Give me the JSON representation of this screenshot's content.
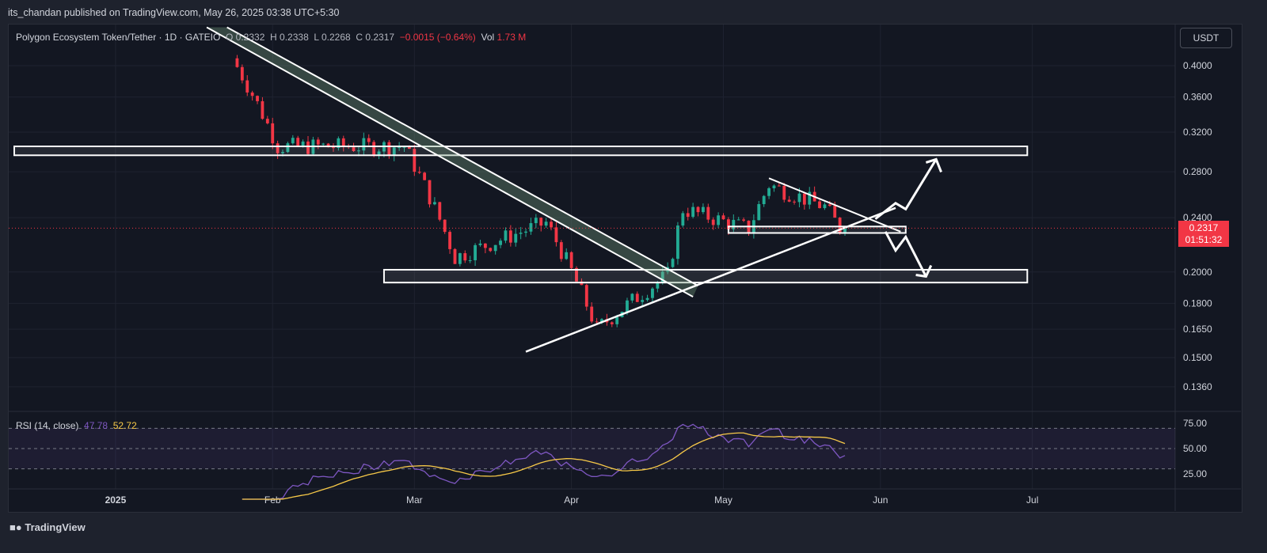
{
  "publisher": "its_chandan published on TradingView.com, May 26, 2025 03:38 UTC+5:30",
  "legend": {
    "symbol": "Polygon Ecosystem Token/Tether · 1D · GATEIO",
    "open": "O 0.2332",
    "high": "H 0.2338",
    "low": "L 0.2268",
    "close": "C 0.2317",
    "change": "−0.0015 (−0.64%)",
    "vol_label": "Vol",
    "vol_value": "1.73 M"
  },
  "currency": "USDT",
  "price_tag": {
    "price": "0.2317",
    "countdown": "01:51:32"
  },
  "rsi_legend": {
    "label": "RSI (14, close)",
    "rsi": "47.78",
    "ma": "52.72"
  },
  "branding": "TradingView",
  "colors": {
    "up": "#22ab94",
    "down": "#f23645",
    "rsi": "#7e57c2",
    "rsi_ma": "#f7c948",
    "zone": "#ffffff"
  },
  "chart_data": {
    "type": "candlestick",
    "title": "Polygon Ecosystem Token/Tether",
    "y_scale": "log",
    "ylim": [
      0.125,
      0.45
    ],
    "y_ticks": [
      "0.4000",
      "0.3600",
      "0.3200",
      "0.2800",
      "0.2400",
      "0.2000",
      "0.1800",
      "0.1650",
      "0.1500",
      "0.1360"
    ],
    "x_ticks": [
      "2025",
      "Feb",
      "Mar",
      "Apr",
      "May",
      "Jun",
      "Jul"
    ],
    "x_tick_dates": [
      "2025-01-01",
      "2025-02-01",
      "2025-03-01",
      "2025-04-01",
      "2025-05-01",
      "2025-06-01",
      "2025-07-01"
    ],
    "x_range": [
      "2024-12-12",
      "2025-07-27"
    ],
    "last_price": 0.2317,
    "key_points": [
      {
        "date": "2025-01-25",
        "close": 0.41
      },
      {
        "date": "2025-02-03",
        "close": 0.305
      },
      {
        "date": "2025-02-28",
        "close": 0.305
      },
      {
        "date": "2025-03-10",
        "close": 0.21
      },
      {
        "date": "2025-03-28",
        "close": 0.236
      },
      {
        "date": "2025-04-07",
        "close": 0.165
      },
      {
        "date": "2025-04-21",
        "close": 0.198
      },
      {
        "date": "2025-04-24",
        "close": 0.247
      },
      {
        "date": "2025-05-07",
        "close": 0.231
      },
      {
        "date": "2025-05-11",
        "close": 0.268
      },
      {
        "date": "2025-05-22",
        "close": 0.249
      },
      {
        "date": "2025-05-25",
        "close": 0.2317
      }
    ],
    "zones": [
      {
        "name": "resistance",
        "low": 0.296,
        "high": 0.305,
        "from": "2024-12-12",
        "to": "2025-06-30"
      },
      {
        "name": "support",
        "low": 0.193,
        "high": 0.2015,
        "from": "2025-02-23",
        "to": "2025-06-30"
      },
      {
        "name": "consolidation",
        "low": 0.228,
        "high": 0.233,
        "from": "2025-05-02",
        "to": "2025-06-06"
      }
    ],
    "rsi": {
      "period": 14,
      "levels": [
        75,
        50,
        25
      ],
      "band": [
        30,
        70
      ],
      "last_rsi": 47.78,
      "last_ma": 52.72
    }
  }
}
